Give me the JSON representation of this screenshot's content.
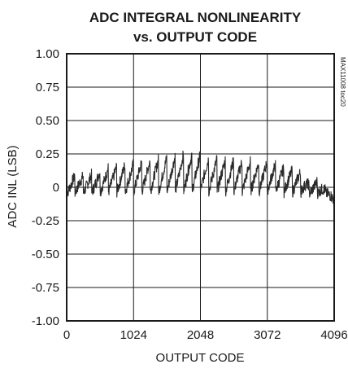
{
  "chart_data": {
    "type": "line",
    "title": "ADC INTEGRAL NONLINEARITY",
    "subtitle": "vs. OUTPUT CODE",
    "xlabel": "OUTPUT CODE",
    "ylabel": "ADC INL (LSB)",
    "chart_id": "MAX11008 toc20",
    "xlim": [
      0,
      4096
    ],
    "ylim": [
      -1.0,
      1.0
    ],
    "x_ticks": [
      0,
      1024,
      2048,
      3072,
      4096
    ],
    "y_ticks": [
      1.0,
      0.75,
      0.5,
      0.25,
      0,
      -0.25,
      -0.5,
      -0.75,
      -1.0
    ],
    "x_tick_labels": [
      "0",
      "1024",
      "2048",
      "3072",
      "4096"
    ],
    "y_tick_labels": [
      "1.00",
      "0.75",
      "0.50",
      "0.25",
      "0",
      "-0.25",
      "-0.50",
      "-0.75",
      "-1.00"
    ],
    "grid": true,
    "line_color": "#2a2a2a",
    "series": [
      {
        "x": [
          0,
          128,
          256,
          384,
          512,
          640,
          768,
          896,
          1024,
          1152,
          1280,
          1408,
          1536,
          1664,
          1792,
          1920,
          2048,
          2176,
          2304,
          2432,
          2560,
          2688,
          2816,
          2944,
          3072,
          3200,
          3328,
          3456,
          3584,
          3712,
          3840,
          3968,
          4096
        ],
        "values": [
          0.05,
          0.1,
          0.09,
          0.1,
          0.13,
          0.15,
          0.16,
          0.18,
          0.18,
          0.2,
          0.21,
          0.22,
          0.23,
          0.24,
          0.26,
          0.25,
          0.25,
          0.22,
          0.22,
          0.21,
          0.21,
          0.2,
          0.2,
          0.19,
          0.2,
          0.17,
          0.15,
          0.13,
          0.12,
          0.02,
          0.05,
          -0.02,
          -0.1
        ]
      }
    ]
  }
}
